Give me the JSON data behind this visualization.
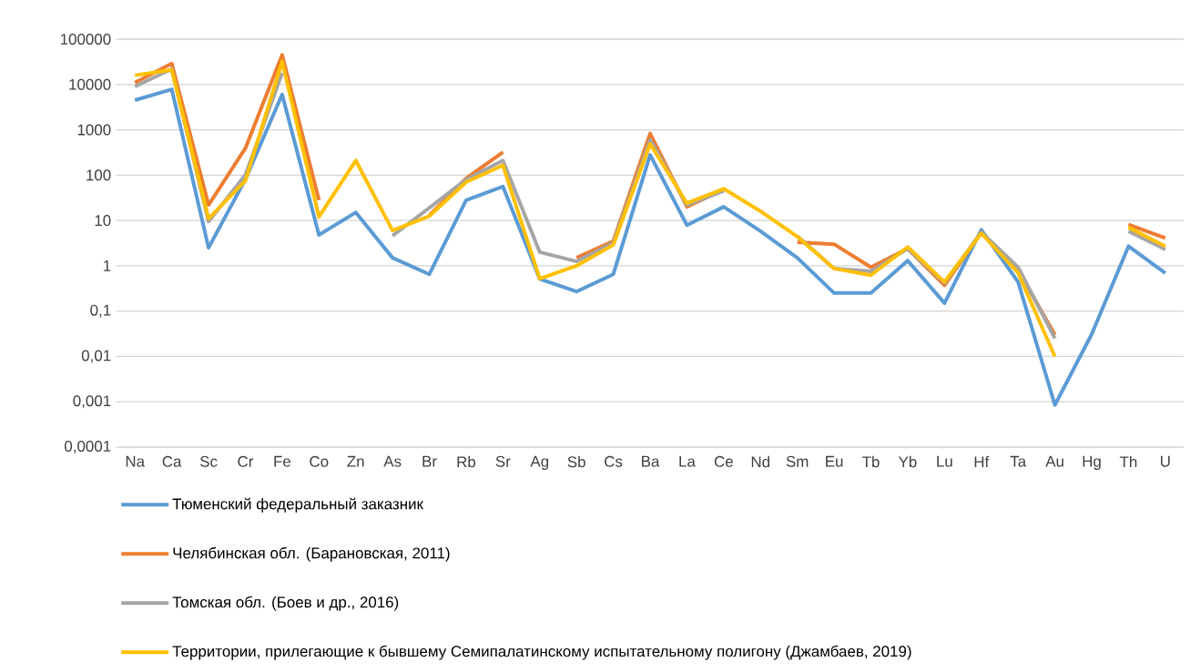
{
  "chart_data": {
    "type": "line",
    "log": "y",
    "grid": "y",
    "legend": "bottom",
    "line_style": "solid",
    "categories": [
      "Na",
      "Ca",
      "Sc",
      "Cr",
      "Fe",
      "Co",
      "Zn",
      "As",
      "Br",
      "Rb",
      "Sr",
      "Ag",
      "Sb",
      "Cs",
      "Ba",
      "La",
      "Ce",
      "Nd",
      "Sm",
      "Eu",
      "Tb",
      "Yb",
      "Lu",
      "Hf",
      "Ta",
      "Au",
      "Hg",
      "Th",
      "U"
    ],
    "ylim": [
      0.0001,
      100000
    ],
    "yticks": [
      {
        "value": 0.0001,
        "label": "0,0001"
      },
      {
        "value": 0.001,
        "label": "0,001"
      },
      {
        "value": 0.01,
        "label": "0,01"
      },
      {
        "value": 0.1,
        "label": "0,1"
      },
      1,
      10,
      100,
      1000,
      10000,
      100000
    ],
    "series": [
      {
        "name": "Тюменский федеральный заказник",
        "color": "#5b9bd5",
        "values": [
          4500,
          7800,
          2.5,
          80,
          6000,
          4.8,
          15,
          1.5,
          0.65,
          28,
          56,
          0.51,
          0.27,
          0.65,
          280,
          7.9,
          20,
          5.8,
          1.5,
          0.25,
          0.25,
          1.3,
          0.15,
          6.2,
          0.44,
          0.00085,
          0.031,
          2.7,
          0.69
        ]
      },
      {
        "name": "Челябинская обл. (Барановская, 2011)",
        "color": "#ed7d31",
        "values": [
          11000,
          29000,
          22,
          390,
          45000,
          28,
          null,
          null,
          13,
          85,
          320,
          null,
          1.5,
          3.5,
          830,
          20,
          48,
          null,
          3.3,
          3.0,
          0.93,
          2.4,
          0.37,
          5.5,
          0.8,
          0.03,
          null,
          8.1,
          4.1
        ]
      },
      {
        "name": "Томская обл. (Боев и др., 2016)",
        "color": "#a5a5a5",
        "values": [
          9000,
          22000,
          9.5,
          100,
          18000,
          null,
          null,
          4.6,
          19,
          80,
          210,
          2.0,
          1.25,
          3.2,
          600,
          22,
          45,
          null,
          4.5,
          0.87,
          0.75,
          2.4,
          0.42,
          5.5,
          0.93,
          0.025,
          null,
          5.8,
          2.3
        ]
      },
      {
        "name": "Территории, прилегающие к бывшему Семипалатинскому испытательному полигону (Джамбаев, 2019)",
        "color": "#ffc000",
        "values": [
          16000,
          21000,
          11,
          75,
          32000,
          12,
          210,
          6,
          12.5,
          70,
          165,
          0.52,
          1.0,
          2.9,
          490,
          24,
          50,
          16,
          4.4,
          0.87,
          0.62,
          2.6,
          0.44,
          5.2,
          0.7,
          0.01,
          null,
          7,
          2.7
        ]
      }
    ]
  }
}
